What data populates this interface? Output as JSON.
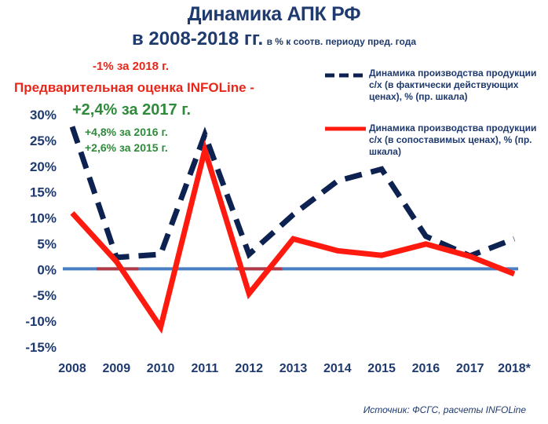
{
  "title": {
    "line1": "Динамика АПК РФ",
    "line2_big": "в 2008-2018 гг.",
    "line2_small": "в % к соотв. периоду пред. года"
  },
  "annotations": {
    "red_small": "-1% за 2018 г.",
    "red_big": "Предварительная оценка INFOLine -",
    "green_big": "+2,4% за 2017 г.",
    "green_2016": "+4,8% за 2016 г.",
    "green_2015": "+2,6% за 2015 г."
  },
  "source": "Источник: ФСГС, расчеты INFOLine",
  "colors": {
    "actual_prices": "#0d2250",
    "comparable_prices": "#ff1a10",
    "zero_line": "#4a7fc4",
    "zero_highlight": "#cc2a2a",
    "text": "#1f3a6e"
  },
  "chart_data": {
    "type": "line",
    "categories": [
      "2008",
      "2009",
      "2010",
      "2011",
      "2012",
      "2013",
      "2014",
      "2015",
      "2016",
      "2017",
      "2018*"
    ],
    "ylim": [
      -15,
      30
    ],
    "yticks": [
      30,
      25,
      20,
      15,
      10,
      5,
      0,
      -5,
      -10,
      -15
    ],
    "ytick_labels": [
      "30%",
      "25%",
      "20%",
      "15%",
      "10%",
      "5%",
      "0%",
      "-5%",
      "-10%",
      "-15%"
    ],
    "grid": false,
    "legend_placement": "top-right",
    "series": [
      {
        "name": "Динамика производства продукции с/х (в фактически действующих ценах), % (пр. шкала)",
        "style": "dashed",
        "values": [
          27.5,
          2.2,
          2.8,
          26.0,
          2.8,
          10.5,
          17.0,
          19.3,
          6.3,
          2.5,
          5.8
        ]
      },
      {
        "name": "Динамика производства продукции с/х (в сопоставимых ценах), % (пр. шкала)",
        "style": "solid",
        "values": [
          10.8,
          1.4,
          -11.3,
          23.0,
          -4.8,
          5.8,
          3.5,
          2.6,
          4.8,
          2.4,
          -1.0
        ]
      }
    ]
  }
}
